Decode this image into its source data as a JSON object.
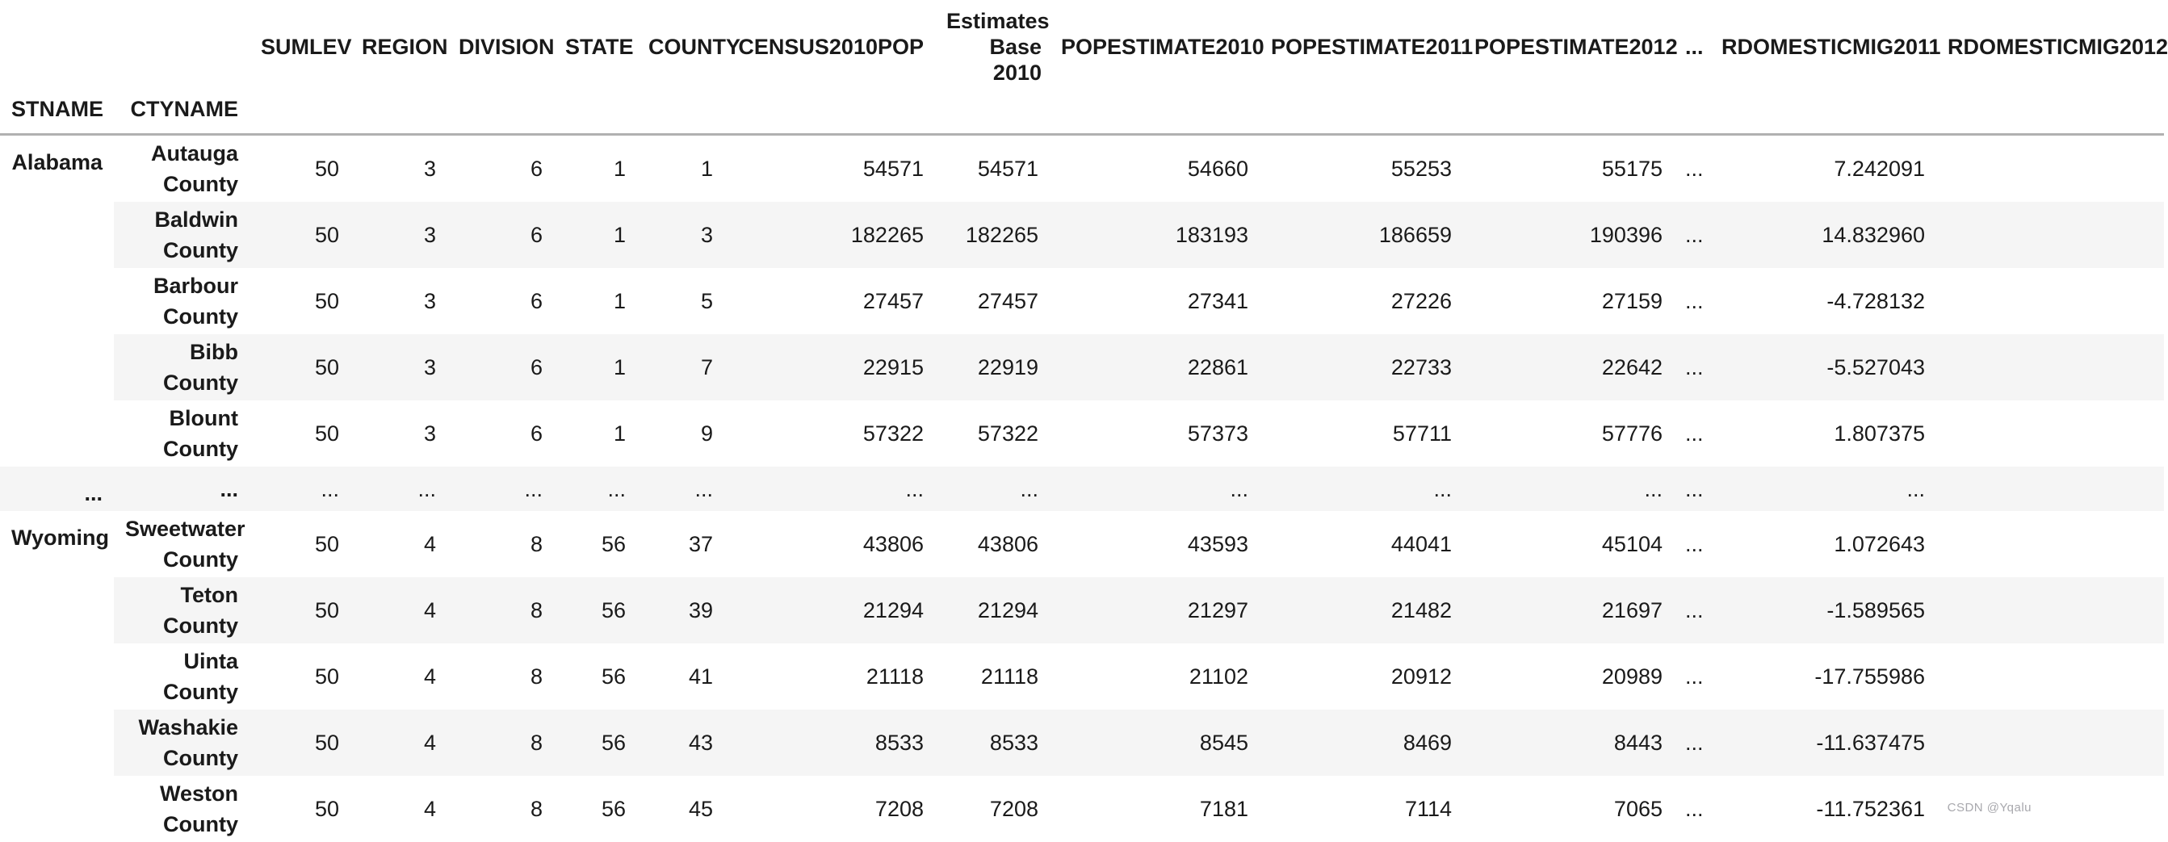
{
  "table": {
    "index_names": [
      "STNAME",
      "CTYNAME"
    ],
    "columns": [
      "SUMLEV",
      "REGION",
      "DIVISION",
      "STATE",
      "COUNTY",
      "CENSUS2010POP",
      "Estimates Base 2010",
      "POPESTIMATE2010",
      "POPESTIMATE2011",
      "POPESTIMATE2012",
      "...",
      "RDOMESTICMIG2011",
      "RDOMESTICMIG2012"
    ],
    "rows": [
      {
        "stname": "Alabama",
        "rowspan": 5,
        "ctyname": "Autauga County",
        "values": [
          "50",
          "3",
          "6",
          "1",
          "1",
          "54571",
          "54571",
          "54660",
          "55253",
          "55175",
          "...",
          "7.242091",
          ""
        ]
      },
      {
        "ctyname": "Baldwin County",
        "values": [
          "50",
          "3",
          "6",
          "1",
          "3",
          "182265",
          "182265",
          "183193",
          "186659",
          "190396",
          "...",
          "14.832960",
          ""
        ]
      },
      {
        "ctyname": "Barbour County",
        "values": [
          "50",
          "3",
          "6",
          "1",
          "5",
          "27457",
          "27457",
          "27341",
          "27226",
          "27159",
          "...",
          "-4.728132",
          ""
        ]
      },
      {
        "ctyname": "Bibb County",
        "values": [
          "50",
          "3",
          "6",
          "1",
          "7",
          "22915",
          "22919",
          "22861",
          "22733",
          "22642",
          "...",
          "-5.527043",
          ""
        ]
      },
      {
        "ctyname": "Blount County",
        "values": [
          "50",
          "3",
          "6",
          "1",
          "9",
          "57322",
          "57322",
          "57373",
          "57711",
          "57776",
          "...",
          "1.807375",
          ""
        ]
      },
      {
        "stname": "...",
        "rowspan": 1,
        "ctyname": "...",
        "values": [
          "...",
          "...",
          "...",
          "...",
          "...",
          "...",
          "...",
          "...",
          "...",
          "...",
          "...",
          "...",
          ""
        ]
      },
      {
        "stname": "Wyoming",
        "rowspan": 5,
        "ctyname": "Sweetwater County",
        "values": [
          "50",
          "4",
          "8",
          "56",
          "37",
          "43806",
          "43806",
          "43593",
          "44041",
          "45104",
          "...",
          "1.072643",
          ""
        ]
      },
      {
        "ctyname": "Teton County",
        "values": [
          "50",
          "4",
          "8",
          "56",
          "39",
          "21294",
          "21294",
          "21297",
          "21482",
          "21697",
          "...",
          "-1.589565",
          ""
        ]
      },
      {
        "ctyname": "Uinta County",
        "values": [
          "50",
          "4",
          "8",
          "56",
          "41",
          "21118",
          "21118",
          "21102",
          "20912",
          "20989",
          "...",
          "-17.755986",
          ""
        ]
      },
      {
        "ctyname": "Washakie County",
        "values": [
          "50",
          "4",
          "8",
          "56",
          "43",
          "8533",
          "8533",
          "8545",
          "8469",
          "8443",
          "...",
          "-11.637475",
          ""
        ]
      },
      {
        "ctyname": "Weston County",
        "values": [
          "50",
          "4",
          "8",
          "56",
          "45",
          "7208",
          "7208",
          "7181",
          "7114",
          "7065",
          "...",
          "-11.752361",
          ""
        ]
      }
    ]
  },
  "colors": {
    "stripe": "#f5f5f5",
    "header_border": "#b1b1b1",
    "text": "#1a1a1a",
    "watermark_text_color": "#a8a8ad"
  },
  "watermark": "CSDN @Yqalu"
}
